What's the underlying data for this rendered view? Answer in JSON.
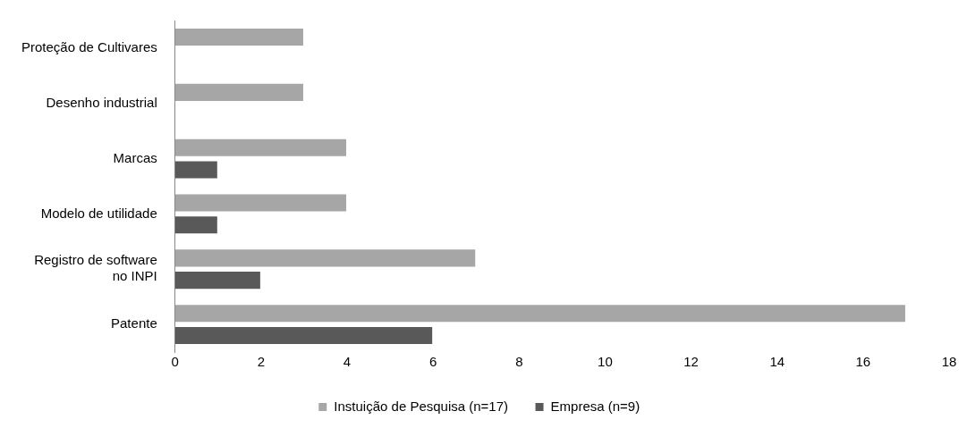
{
  "chart_data": {
    "type": "bar",
    "orientation": "horizontal",
    "categories": [
      "Proteção de Cultivares",
      "Desenho industrial",
      "Marcas",
      "Modelo de utilidade",
      "Registro de software no INPI",
      "Patente"
    ],
    "series": [
      {
        "name": "Instuição de Pesquisa (n=17)",
        "color": "#a6a6a6",
        "values": [
          3,
          3,
          4,
          4,
          7,
          17
        ]
      },
      {
        "name": "Empresa (n=9)",
        "color": "#595959",
        "values": [
          0,
          0,
          1,
          1,
          2,
          6
        ]
      }
    ],
    "xlim": [
      0,
      18
    ],
    "xticks": [
      0,
      2,
      4,
      6,
      8,
      10,
      12,
      14,
      16,
      18
    ],
    "grid": false,
    "legend": "bottom"
  }
}
